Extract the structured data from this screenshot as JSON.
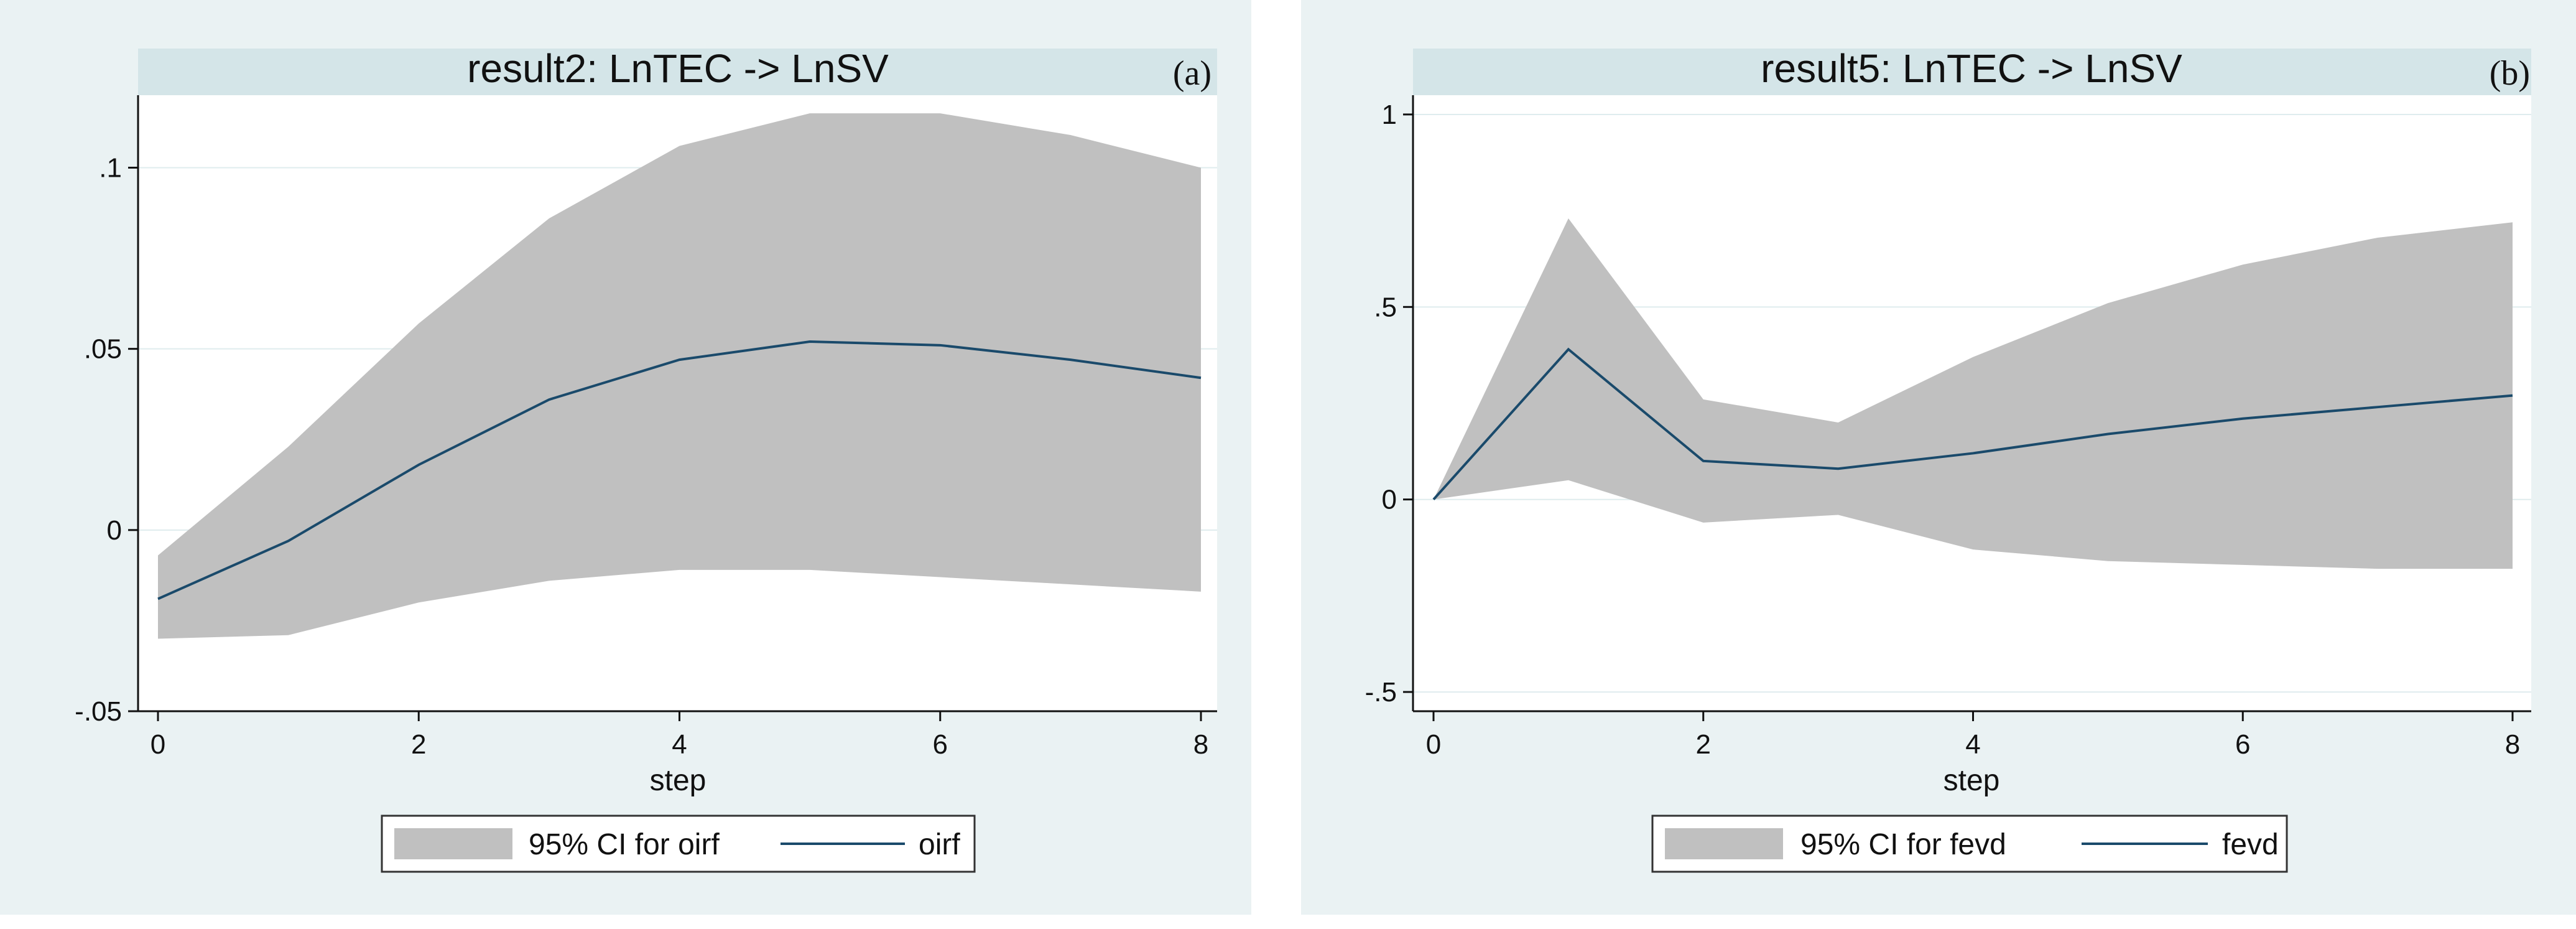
{
  "chart_data": [
    {
      "type": "area",
      "panel_label": "(a)",
      "title": "result2: LnTEC -> LnSV",
      "xlabel": "step",
      "ylabel": "",
      "xlim": [
        0,
        8
      ],
      "ylim": [
        -0.05,
        0.12
      ],
      "x": [
        0,
        1,
        2,
        3,
        4,
        5,
        6,
        7,
        8
      ],
      "xticks": [
        0,
        2,
        4,
        6,
        8
      ],
      "xtick_labels": [
        "0",
        "2",
        "4",
        "6",
        "8"
      ],
      "yticks": [
        -0.05,
        0,
        0.05,
        0.1
      ],
      "ytick_labels": [
        "-.05",
        "0",
        ".05",
        ".1"
      ],
      "grid": true,
      "series": [
        {
          "name": "95% CI for oirf",
          "kind": "band",
          "color": "#c0c0c0",
          "lower": [
            -0.03,
            -0.029,
            -0.02,
            -0.014,
            -0.011,
            -0.011,
            -0.013,
            -0.015,
            -0.017
          ],
          "upper": [
            -0.007,
            0.023,
            0.057,
            0.086,
            0.106,
            0.115,
            0.115,
            0.109,
            0.1
          ]
        },
        {
          "name": "oirf",
          "kind": "line",
          "color": "#1a4a6b",
          "values": [
            -0.019,
            -0.003,
            0.018,
            0.036,
            0.047,
            0.052,
            0.051,
            0.047,
            0.042
          ]
        }
      ],
      "legend": [
        "95% CI for oirf",
        "oirf"
      ]
    },
    {
      "type": "area",
      "panel_label": "(b)",
      "title": "result5: LnTEC -> LnSV",
      "xlabel": "step",
      "ylabel": "",
      "xlim": [
        0,
        8
      ],
      "ylim": [
        -0.55,
        1.05
      ],
      "x": [
        0,
        1,
        2,
        3,
        4,
        5,
        6,
        7,
        8
      ],
      "xticks": [
        0,
        2,
        4,
        6,
        8
      ],
      "xtick_labels": [
        "0",
        "2",
        "4",
        "6",
        "8"
      ],
      "yticks": [
        -0.5,
        0,
        0.5,
        1
      ],
      "ytick_labels": [
        "-.5",
        "0",
        ".5",
        "1"
      ],
      "grid": true,
      "series": [
        {
          "name": "95% CI for fevd",
          "kind": "band",
          "color": "#c0c0c0",
          "lower": [
            0.0,
            0.05,
            -0.06,
            -0.04,
            -0.13,
            -0.16,
            -0.17,
            -0.18,
            -0.18
          ],
          "upper": [
            0.0,
            0.73,
            0.26,
            0.2,
            0.37,
            0.51,
            0.61,
            0.68,
            0.72
          ]
        },
        {
          "name": "fevd",
          "kind": "line",
          "color": "#1a4a6b",
          "values": [
            0.0,
            0.39,
            0.1,
            0.08,
            0.12,
            0.17,
            0.21,
            0.24,
            0.27
          ]
        }
      ],
      "legend": [
        "95% CI for fevd",
        "fevd"
      ]
    }
  ],
  "colors": {
    "panel_bg": "#eaf2f3",
    "title_bar": "#d4e5e8",
    "plot_bg": "#ffffff",
    "grid": "#dfecee",
    "band": "#c0c0c0",
    "line": "#1a4a6b"
  }
}
